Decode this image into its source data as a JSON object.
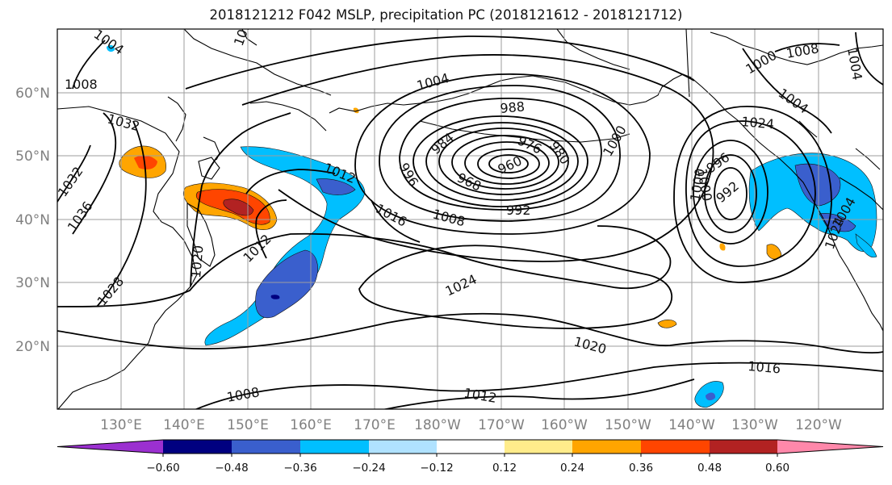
{
  "title": "2018121212 F042 MSLP, precipitation PC (2018121612 - 2018121712)",
  "map": {
    "lon_labels": [
      "130°E",
      "140°E",
      "150°E",
      "160°E",
      "170°E",
      "180°W",
      "170°W",
      "160°W",
      "150°W",
      "140°W",
      "130°W",
      "120°W"
    ],
    "lat_labels": [
      "20°N",
      "30°N",
      "40°N",
      "50°N",
      "60°N"
    ],
    "contour_labels": [
      {
        "text": "1008"
      },
      {
        "text": "1004"
      },
      {
        "text": "1004"
      },
      {
        "text": "988"
      },
      {
        "text": "984"
      },
      {
        "text": "976"
      },
      {
        "text": "980"
      },
      {
        "text": "960"
      },
      {
        "text": "968"
      },
      {
        "text": "996"
      },
      {
        "text": "1000"
      },
      {
        "text": "1000"
      },
      {
        "text": "1008"
      },
      {
        "text": "1000"
      },
      {
        "text": "1004"
      },
      {
        "text": "1012"
      },
      {
        "text": "1016"
      },
      {
        "text": "1008"
      },
      {
        "text": "992"
      },
      {
        "text": "996"
      },
      {
        "text": "1000"
      },
      {
        "text": "992"
      },
      {
        "text": "1024"
      },
      {
        "text": "1020"
      },
      {
        "text": "1016"
      },
      {
        "text": "1012"
      },
      {
        "text": "1008"
      },
      {
        "text": "1028"
      },
      {
        "text": "1020"
      },
      {
        "text": "1012"
      },
      {
        "text": "1032"
      },
      {
        "text": "1036"
      },
      {
        "text": "1032"
      },
      {
        "text": "1024"
      },
      {
        "text": "1004"
      },
      {
        "text": "1012"
      },
      {
        "text": "1024"
      },
      {
        "text": "1004"
      }
    ]
  },
  "colorbar": {
    "colors": [
      "#9b30d0",
      "#000080",
      "#3a5fcd",
      "#00bfff",
      "#b0e2ff",
      "#ffffff",
      "#ffec8b",
      "#ffa500",
      "#ff4500",
      "#b22222",
      "#ff88aa"
    ],
    "tick_labels": [
      "−0.60",
      "−0.48",
      "−0.36",
      "−0.24",
      "−0.12",
      "0.12",
      "0.24",
      "0.36",
      "0.48",
      "0.60"
    ]
  }
}
